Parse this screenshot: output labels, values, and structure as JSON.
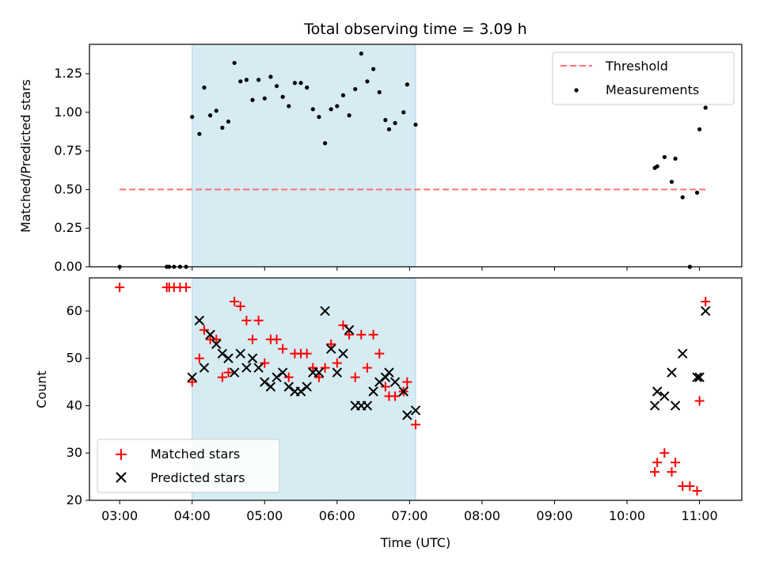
{
  "chart_data": [
    {
      "type": "scatter",
      "title": "Total observing time = 3.09 h",
      "xlabel": "",
      "ylabel": "Matched/Predicted stars",
      "ylim": [
        0,
        1.44
      ],
      "yticks": [
        "0.00",
        "0.25",
        "0.50",
        "0.75",
        "1.00",
        "1.25"
      ],
      "highlight": {
        "x_start": "04:00",
        "x_end": "07:05",
        "color": "#add8e6"
      },
      "threshold": {
        "name": "Threshold",
        "y": 0.5,
        "x_start": "03:00",
        "x_end": "11:05",
        "color": "#ff7070"
      },
      "legend": {
        "position": "upper right"
      },
      "series": [
        {
          "name": "Measurements",
          "color": "#000000",
          "points": [
            [
              "03:00",
              0.0
            ],
            [
              "03:39",
              0.0
            ],
            [
              "03:41",
              0.0
            ],
            [
              "03:45",
              0.0
            ],
            [
              "03:50",
              0.0
            ],
            [
              "03:55",
              0.0
            ],
            [
              "04:00",
              0.97
            ],
            [
              "04:06",
              0.86
            ],
            [
              "04:10",
              1.16
            ],
            [
              "04:15",
              0.98
            ],
            [
              "04:20",
              1.01
            ],
            [
              "04:25",
              0.9
            ],
            [
              "04:30",
              0.94
            ],
            [
              "04:35",
              1.32
            ],
            [
              "04:40",
              1.2
            ],
            [
              "04:45",
              1.21
            ],
            [
              "04:50",
              1.08
            ],
            [
              "04:55",
              1.21
            ],
            [
              "05:00",
              1.09
            ],
            [
              "05:05",
              1.23
            ],
            [
              "05:10",
              1.17
            ],
            [
              "05:15",
              1.1
            ],
            [
              "05:20",
              1.04
            ],
            [
              "05:25",
              1.19
            ],
            [
              "05:30",
              1.19
            ],
            [
              "05:35",
              1.16
            ],
            [
              "05:40",
              1.02
            ],
            [
              "05:45",
              0.97
            ],
            [
              "05:50",
              0.8
            ],
            [
              "05:55",
              1.02
            ],
            [
              "06:00",
              1.04
            ],
            [
              "06:05",
              1.11
            ],
            [
              "06:10",
              0.98
            ],
            [
              "06:15",
              1.15
            ],
            [
              "06:20",
              1.38
            ],
            [
              "06:25",
              1.2
            ],
            [
              "06:30",
              1.28
            ],
            [
              "06:35",
              1.13
            ],
            [
              "06:40",
              0.95
            ],
            [
              "06:43",
              0.89
            ],
            [
              "06:48",
              0.93
            ],
            [
              "06:55",
              1.0
            ],
            [
              "06:58",
              1.18
            ],
            [
              "07:05",
              0.92
            ],
            [
              "10:23",
              0.64
            ],
            [
              "10:25",
              0.65
            ],
            [
              "10:31",
              0.71
            ],
            [
              "10:37",
              0.55
            ],
            [
              "10:40",
              0.7
            ],
            [
              "10:46",
              0.45
            ],
            [
              "10:52",
              0.0
            ],
            [
              "10:58",
              0.48
            ],
            [
              "11:00",
              0.89
            ],
            [
              "11:05",
              1.03
            ]
          ]
        }
      ]
    },
    {
      "type": "scatter",
      "title": "",
      "xlabel": "Time (UTC)",
      "ylabel": "Count",
      "ylim": [
        20,
        67
      ],
      "yticks": [
        "20",
        "30",
        "40",
        "50",
        "60"
      ],
      "xticks": [
        "03:00",
        "04:00",
        "05:00",
        "06:00",
        "07:00",
        "08:00",
        "09:00",
        "10:00",
        "11:00"
      ],
      "highlight": {
        "x_start": "04:00",
        "x_end": "07:05",
        "color": "#add8e6"
      },
      "legend": {
        "position": "lower left"
      },
      "series": [
        {
          "name": "Matched stars",
          "marker": "+",
          "color": "#ff0000",
          "points": [
            [
              "03:00",
              65
            ],
            [
              "03:39",
              65
            ],
            [
              "03:41",
              65
            ],
            [
              "03:45",
              65
            ],
            [
              "03:50",
              65
            ],
            [
              "03:55",
              65
            ],
            [
              "04:00",
              45
            ],
            [
              "04:06",
              50
            ],
            [
              "04:10",
              56
            ],
            [
              "04:15",
              54
            ],
            [
              "04:20",
              54
            ],
            [
              "04:25",
              46
            ],
            [
              "04:30",
              47
            ],
            [
              "04:35",
              62
            ],
            [
              "04:40",
              61
            ],
            [
              "04:45",
              58
            ],
            [
              "04:50",
              54
            ],
            [
              "04:55",
              58
            ],
            [
              "05:00",
              49
            ],
            [
              "05:05",
              54
            ],
            [
              "05:10",
              54
            ],
            [
              "05:15",
              52
            ],
            [
              "05:20",
              46
            ],
            [
              "05:25",
              51
            ],
            [
              "05:30",
              51
            ],
            [
              "05:35",
              51
            ],
            [
              "05:40",
              48
            ],
            [
              "05:45",
              46
            ],
            [
              "05:50",
              48
            ],
            [
              "05:55",
              53
            ],
            [
              "06:00",
              49
            ],
            [
              "06:05",
              57
            ],
            [
              "06:10",
              55
            ],
            [
              "06:15",
              46
            ],
            [
              "06:20",
              55
            ],
            [
              "06:25",
              48
            ],
            [
              "06:30",
              55
            ],
            [
              "06:35",
              51
            ],
            [
              "06:40",
              44
            ],
            [
              "06:43",
              42
            ],
            [
              "06:48",
              42
            ],
            [
              "06:55",
              43
            ],
            [
              "06:58",
              45
            ],
            [
              "07:05",
              36
            ],
            [
              "10:23",
              26
            ],
            [
              "10:25",
              28
            ],
            [
              "10:31",
              30
            ],
            [
              "10:37",
              26
            ],
            [
              "10:40",
              28
            ],
            [
              "10:46",
              23
            ],
            [
              "10:52",
              23
            ],
            [
              "10:58",
              22
            ],
            [
              "11:00",
              41
            ],
            [
              "11:05",
              62
            ]
          ]
        },
        {
          "name": "Predicted stars",
          "marker": "x",
          "color": "#000000",
          "points": [
            [
              "04:00",
              46
            ],
            [
              "04:06",
              58
            ],
            [
              "04:10",
              48
            ],
            [
              "04:15",
              55
            ],
            [
              "04:20",
              53
            ],
            [
              "04:25",
              51
            ],
            [
              "04:30",
              50
            ],
            [
              "04:35",
              47
            ],
            [
              "04:40",
              51
            ],
            [
              "04:45",
              48
            ],
            [
              "04:50",
              50
            ],
            [
              "04:55",
              48
            ],
            [
              "05:00",
              45
            ],
            [
              "05:05",
              44
            ],
            [
              "05:10",
              46
            ],
            [
              "05:15",
              47
            ],
            [
              "05:20",
              44
            ],
            [
              "05:25",
              43
            ],
            [
              "05:30",
              43
            ],
            [
              "05:35",
              44
            ],
            [
              "05:40",
              47
            ],
            [
              "05:45",
              47
            ],
            [
              "05:50",
              60
            ],
            [
              "05:55",
              52
            ],
            [
              "06:00",
              47
            ],
            [
              "06:05",
              51
            ],
            [
              "06:10",
              56
            ],
            [
              "06:15",
              40
            ],
            [
              "06:20",
              40
            ],
            [
              "06:25",
              40
            ],
            [
              "06:30",
              43
            ],
            [
              "06:35",
              45
            ],
            [
              "06:40",
              46
            ],
            [
              "06:43",
              47
            ],
            [
              "06:48",
              45
            ],
            [
              "06:55",
              43
            ],
            [
              "06:58",
              38
            ],
            [
              "07:05",
              39
            ],
            [
              "10:23",
              40
            ],
            [
              "10:25",
              43
            ],
            [
              "10:31",
              42
            ],
            [
              "10:37",
              47
            ],
            [
              "10:40",
              40
            ],
            [
              "10:46",
              51
            ],
            [
              "10:58",
              46
            ],
            [
              "11:00",
              46
            ],
            [
              "11:05",
              60
            ]
          ]
        }
      ]
    }
  ],
  "x_axis": {
    "min_minutes": 155,
    "max_minutes": 695
  }
}
